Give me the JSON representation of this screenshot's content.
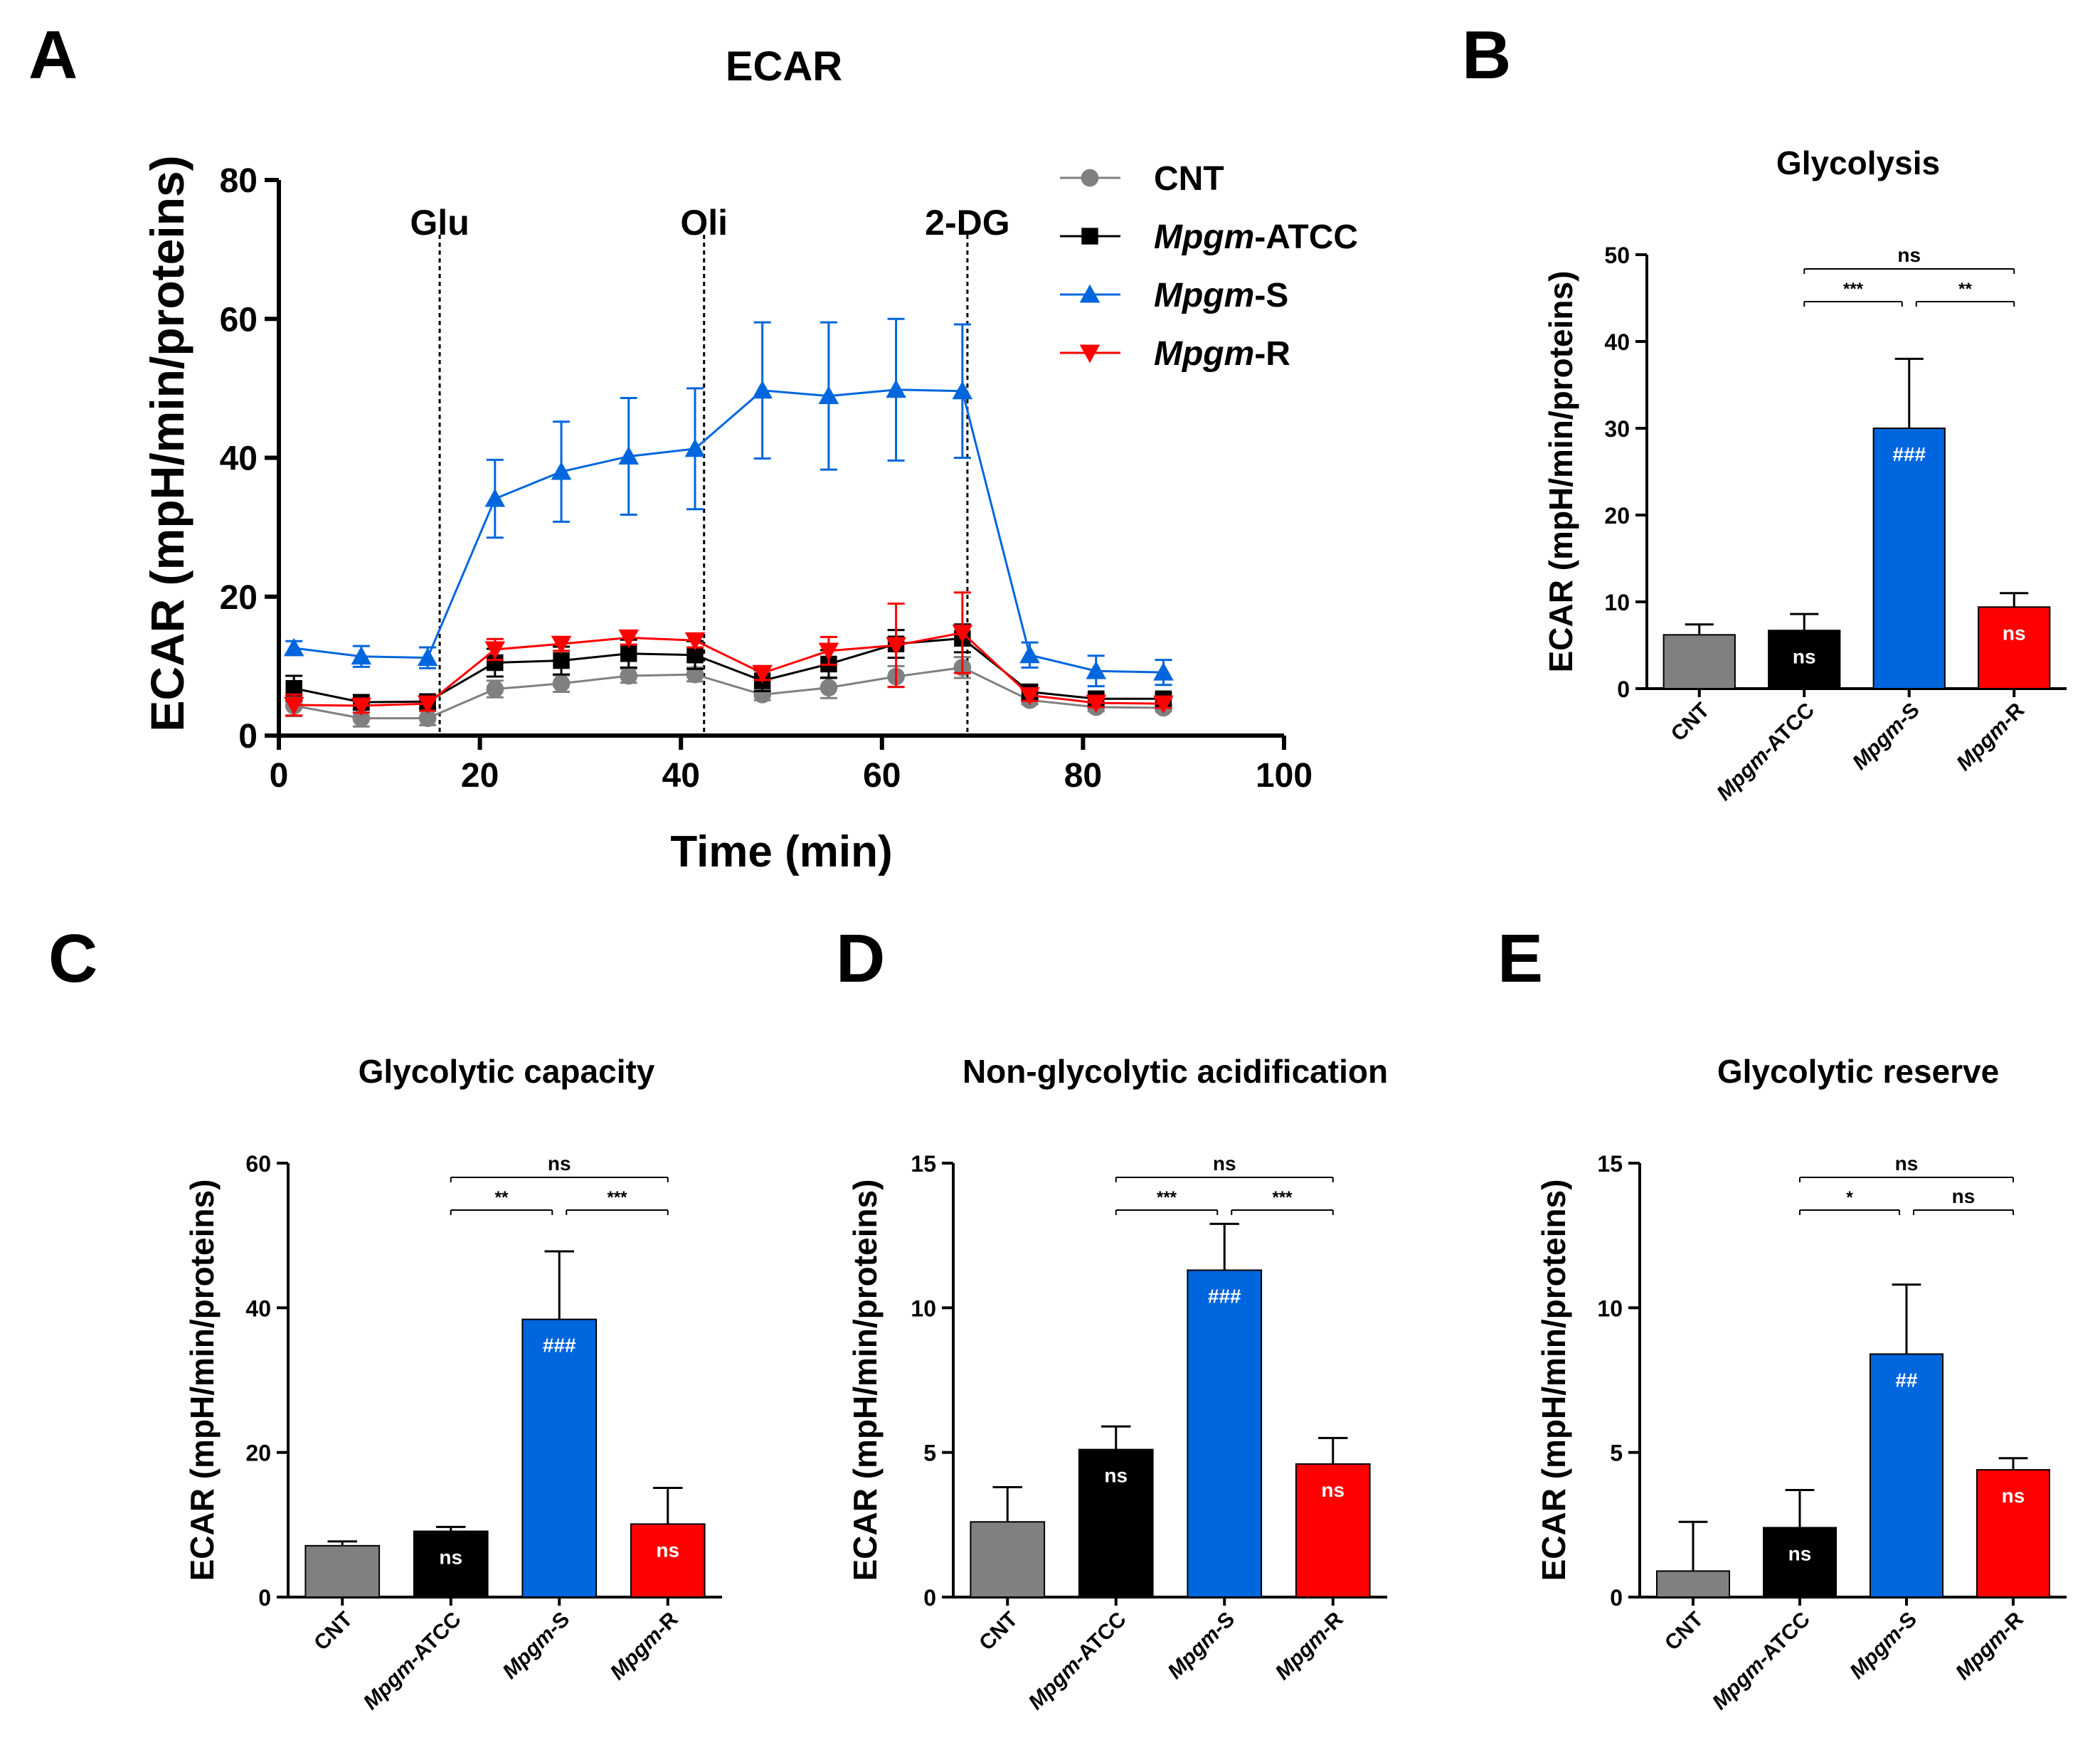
{
  "colors": {
    "CNT": "#808080",
    "Mpgm-ATCC": "#000000",
    "Mpgm-S": "#0066dd",
    "Mpgm-R": "#ff0000"
  },
  "chart_data": [
    {
      "panel": "A",
      "type": "line",
      "title": "ECAR",
      "xlabel": "Time (min)",
      "ylabel": "ECAR (mpH/min/proteins)",
      "xlim": [
        0,
        100
      ],
      "ylim": [
        0,
        80
      ],
      "xticks": [
        "0",
        "20",
        "40",
        "60",
        "80",
        "100"
      ],
      "yticks": [
        "0",
        "20",
        "40",
        "60",
        "80"
      ],
      "markers": [
        {
          "label": "Glu",
          "x": 16
        },
        {
          "label": "Oli",
          "x": 42.3
        },
        {
          "label": "2-DG",
          "x": 68.5
        }
      ],
      "x": [
        1.5,
        8.2,
        14.8,
        21.5,
        28.1,
        34.8,
        41.4,
        48.1,
        54.7,
        61.4,
        68.0,
        74.7,
        81.3,
        88.0
      ],
      "series": [
        {
          "name": "CNT",
          "italic": "",
          "suffix": "CNT",
          "marker": "circle",
          "values": [
            4.3,
            2.5,
            2.5,
            6.7,
            7.5,
            8.6,
            8.8,
            5.9,
            6.9,
            8.5,
            9.8,
            5.1,
            4.1,
            4.0
          ],
          "errors": [
            1.5,
            1.2,
            1.0,
            1.2,
            1.2,
            1.0,
            1.0,
            0.8,
            1.5,
            1.5,
            1.5,
            0.6,
            0.6,
            0.5
          ]
        },
        {
          "name": "Mpgm-ATCC",
          "italic": "Mpgm",
          "suffix": "-ATCC",
          "marker": "square",
          "values": [
            6.8,
            4.8,
            4.9,
            10.5,
            10.8,
            11.8,
            11.6,
            7.9,
            10.3,
            13.2,
            14.0,
            6.3,
            5.3,
            5.3
          ],
          "errors": [
            1.8,
            1.0,
            1.0,
            2.0,
            2.0,
            2.0,
            2.0,
            1.5,
            2.0,
            2.0,
            2.0,
            1.0,
            0.8,
            0.8
          ]
        },
        {
          "name": "Mpgm-S",
          "italic": "Mpgm",
          "suffix": "-S",
          "marker": "triangle-up",
          "values": [
            12.6,
            11.4,
            11.2,
            34.1,
            38.0,
            40.2,
            41.3,
            49.7,
            48.9,
            49.8,
            49.6,
            11.6,
            9.3,
            9.1
          ],
          "errors": [
            1.0,
            1.5,
            1.5,
            5.6,
            7.2,
            8.4,
            8.7,
            9.8,
            10.6,
            10.2,
            9.6,
            1.8,
            2.2,
            1.8
          ]
        },
        {
          "name": "Mpgm-R",
          "italic": "Mpgm",
          "suffix": "-R",
          "marker": "triangle-down",
          "values": [
            4.4,
            4.3,
            4.6,
            12.4,
            13.2,
            14.1,
            13.7,
            9.0,
            12.2,
            13.0,
            14.8,
            5.8,
            4.7,
            4.6
          ],
          "errors": [
            1.5,
            1.0,
            1.0,
            1.5,
            1.0,
            1.0,
            1.0,
            1.0,
            2.0,
            6.0,
            5.8,
            0.8,
            0.6,
            0.6
          ]
        }
      ]
    },
    {
      "panel": "B",
      "type": "bar",
      "title": "Glycolysis",
      "ylabel": "ECAR (mpH/min/proteins)",
      "ylim": [
        0,
        50
      ],
      "yticks": [
        "0",
        "10",
        "20",
        "30",
        "40",
        "50"
      ],
      "categories": [
        {
          "name": "CNT",
          "italic": "",
          "suffix": "CNT"
        },
        {
          "name": "Mpgm-ATCC",
          "italic": "Mpgm",
          "suffix": "-ATCC"
        },
        {
          "name": "Mpgm-S",
          "italic": "Mpgm",
          "suffix": "-S"
        },
        {
          "name": "Mpgm-R",
          "italic": "Mpgm",
          "suffix": "-R"
        }
      ],
      "values": [
        6.2,
        6.7,
        30.0,
        9.4
      ],
      "errors": [
        1.2,
        1.9,
        8.0,
        1.6
      ],
      "bar_labels": [
        "",
        "ns",
        "###",
        "ns"
      ],
      "comparisons": [
        {
          "from": 1,
          "to": 3,
          "label": "ns"
        },
        {
          "from": 1,
          "to": 2,
          "label": "***"
        },
        {
          "from": 2,
          "to": 3,
          "label": "**"
        }
      ]
    },
    {
      "panel": "C",
      "type": "bar",
      "title": "Glycolytic capacity",
      "ylabel": "ECAR (mpH/min/proteins)",
      "ylim": [
        0,
        60
      ],
      "yticks": [
        "0",
        "20",
        "40",
        "60"
      ],
      "categories": [
        {
          "name": "CNT",
          "italic": "",
          "suffix": "CNT"
        },
        {
          "name": "Mpgm-ATCC",
          "italic": "Mpgm",
          "suffix": "-ATCC"
        },
        {
          "name": "Mpgm-S",
          "italic": "Mpgm",
          "suffix": "-S"
        },
        {
          "name": "Mpgm-R",
          "italic": "Mpgm",
          "suffix": "-R"
        }
      ],
      "values": [
        7.1,
        9.1,
        38.4,
        10.1
      ],
      "errors": [
        0.6,
        0.6,
        9.4,
        5.0
      ],
      "bar_labels": [
        "",
        "ns",
        "###",
        "ns"
      ],
      "comparisons": [
        {
          "from": 1,
          "to": 3,
          "label": "ns"
        },
        {
          "from": 1,
          "to": 2,
          "label": "**"
        },
        {
          "from": 2,
          "to": 3,
          "label": "***"
        }
      ]
    },
    {
      "panel": "D",
      "type": "bar",
      "title": "Non-glycolytic acidification",
      "ylabel": "ECAR (mpH/min/proteins)",
      "ylim": [
        0,
        15
      ],
      "yticks": [
        "0",
        "5",
        "10",
        "15"
      ],
      "categories": [
        {
          "name": "CNT",
          "italic": "",
          "suffix": "CNT"
        },
        {
          "name": "Mpgm-ATCC",
          "italic": "Mpgm",
          "suffix": "-ATCC"
        },
        {
          "name": "Mpgm-S",
          "italic": "Mpgm",
          "suffix": "-S"
        },
        {
          "name": "Mpgm-R",
          "italic": "Mpgm",
          "suffix": "-R"
        }
      ],
      "values": [
        2.6,
        5.1,
        11.3,
        4.6
      ],
      "errors": [
        1.2,
        0.8,
        1.6,
        0.9
      ],
      "bar_labels": [
        "",
        "ns",
        "###",
        "ns"
      ],
      "comparisons": [
        {
          "from": 1,
          "to": 3,
          "label": "ns"
        },
        {
          "from": 1,
          "to": 2,
          "label": "***"
        },
        {
          "from": 2,
          "to": 3,
          "label": "***"
        }
      ]
    },
    {
      "panel": "E",
      "type": "bar",
      "title": "Glycolytic reserve",
      "ylabel": "ECAR (mpH/min/proteins)",
      "ylim": [
        0,
        15
      ],
      "yticks": [
        "0",
        "5",
        "10",
        "15"
      ],
      "categories": [
        {
          "name": "CNT",
          "italic": "",
          "suffix": "CNT"
        },
        {
          "name": "Mpgm-ATCC",
          "italic": "Mpgm",
          "suffix": "-ATCC"
        },
        {
          "name": "Mpgm-S",
          "italic": "Mpgm",
          "suffix": "-S"
        },
        {
          "name": "Mpgm-R",
          "italic": "Mpgm",
          "suffix": "-R"
        }
      ],
      "values": [
        0.9,
        2.4,
        8.4,
        4.4
      ],
      "errors": [
        1.7,
        1.3,
        2.4,
        0.4
      ],
      "bar_labels": [
        "",
        "ns",
        "##",
        "ns"
      ],
      "comparisons": [
        {
          "from": 1,
          "to": 3,
          "label": "ns"
        },
        {
          "from": 1,
          "to": 2,
          "label": "*"
        },
        {
          "from": 2,
          "to": 3,
          "label": "ns"
        }
      ]
    }
  ]
}
